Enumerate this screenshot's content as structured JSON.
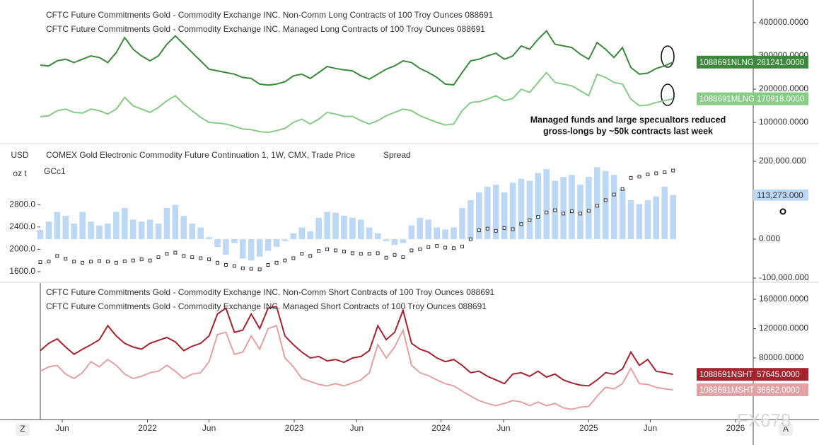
{
  "annotation": [
    "Managed funds and large specualtors reduced",
    "gross-longs by ~50k contracts last week"
  ],
  "buttons": [
    "Z",
    "A"
  ],
  "watermark": "FX678",
  "time_axis": {
    "xlim": [
      0,
      84.5
    ],
    "xticks": [
      {
        "value": 2.6,
        "label": "Jun"
      },
      {
        "value": 12.7,
        "label": "2022"
      },
      {
        "value": 20.0,
        "label": "Jun"
      },
      {
        "value": 30.1,
        "label": "2023"
      },
      {
        "value": 37.5,
        "label": "Jun"
      },
      {
        "value": 47.5,
        "label": "2024"
      },
      {
        "value": 54.9,
        "label": "Jun"
      },
      {
        "value": 65.0,
        "label": "2025"
      },
      {
        "value": 72.3,
        "label": "Jun"
      },
      {
        "value": 82.4,
        "label": "2026"
      }
    ]
  },
  "chart_data": [
    {
      "type": "line",
      "y_axis_side": "right",
      "ylim": [
        42500,
        451000
      ],
      "yticks": [
        {
          "value": 400000,
          "label": "400000.0000"
        },
        {
          "value": 300000,
          "label": "300000.0000"
        },
        {
          "value": 200000,
          "label": "200000.0000"
        },
        {
          "value": 100000,
          "label": "100000.0000"
        }
      ],
      "series": [
        {
          "name": "1088691NLNG",
          "legend": "CFTC Future Commitments Gold - Commodity Exchange INC. Non-Comm Long Contracts of 100 Troy Ounces 088691",
          "color": "#3b8a3b",
          "type": "line",
          "last_value_label": "281241.0000",
          "values": [
            272000,
            270000,
            285000,
            290000,
            280000,
            290000,
            300000,
            295000,
            280000,
            310000,
            355000,
            320000,
            300000,
            285000,
            300000,
            335000,
            360000,
            335000,
            310000,
            285000,
            260000,
            255000,
            250000,
            245000,
            235000,
            232000,
            215000,
            212000,
            215000,
            222000,
            240000,
            245000,
            232000,
            250000,
            268000,
            262000,
            258000,
            255000,
            240000,
            230000,
            245000,
            260000,
            270000,
            285000,
            280000,
            262000,
            250000,
            235000,
            215000,
            213000,
            250000,
            285000,
            290000,
            300000,
            308000,
            290000,
            300000,
            330000,
            320000,
            350000,
            375000,
            335000,
            330000,
            325000,
            305000,
            290000,
            340000,
            320000,
            295000,
            325000,
            265000,
            245000,
            248000,
            262000,
            270000,
            281241
          ]
        },
        {
          "name": "1088691MLNG",
          "legend": "CFTC Future Commitments Gold - Commodity Exchange INC. Managed Long Contracts of 100 Troy Ounces 088691",
          "color": "#86cb86",
          "type": "line",
          "last_value_label": "170918.0000",
          "values": [
            117000,
            120000,
            135000,
            140000,
            130000,
            128000,
            140000,
            135000,
            125000,
            140000,
            175000,
            150000,
            140000,
            130000,
            145000,
            165000,
            180000,
            155000,
            135000,
            115000,
            100000,
            98000,
            95000,
            88000,
            80000,
            78000,
            72000,
            70000,
            75000,
            82000,
            100000,
            110000,
            95000,
            110000,
            130000,
            125000,
            118000,
            118000,
            105000,
            95000,
            105000,
            120000,
            130000,
            140000,
            135000,
            120000,
            110000,
            100000,
            92000,
            95000,
            135000,
            160000,
            162000,
            170000,
            180000,
            165000,
            172000,
            200000,
            190000,
            220000,
            250000,
            220000,
            215000,
            210000,
            195000,
            180000,
            245000,
            235000,
            220000,
            215000,
            170000,
            150000,
            152000,
            160000,
            165000,
            170918
          ]
        }
      ]
    },
    {
      "type": "combo",
      "y_axis_side": "left",
      "title": "COMEX Gold Electronic Commodity Future Continuation 1, 1W, CMX, Trade Price",
      "ylabel": [
        "USD",
        "oz t"
      ],
      "ylim": [
        1422,
        3867
      ],
      "yticks": [
        {
          "value": 2800,
          "label": "2800.0"
        },
        {
          "value": 2400,
          "label": "2400.0"
        },
        {
          "value": 2000,
          "label": "2000.0"
        },
        {
          "value": 1600,
          "label": "1600.0"
        }
      ],
      "y2lim": [
        -109000,
        241800
      ],
      "y2ticks": [
        {
          "value": 200000,
          "label": "200,000.000"
        },
        {
          "value": 0,
          "label": "0.000"
        },
        {
          "value": -100000,
          "label": "-100,000.000"
        }
      ],
      "series": [
        {
          "name": "Spread",
          "color": "#bcd8f5",
          "type": "bar",
          "axis": "y2",
          "last_value_label": "113,273.000",
          "values": [
            24000,
            45000,
            70000,
            60000,
            40000,
            70000,
            45000,
            35000,
            40000,
            70000,
            80000,
            50000,
            45000,
            50000,
            40000,
            80000,
            88000,
            60000,
            40000,
            30000,
            5000,
            -20000,
            -40000,
            -10000,
            -50000,
            -55000,
            -45000,
            -30000,
            -20000,
            -5000,
            15000,
            30000,
            20000,
            55000,
            70000,
            68000,
            60000,
            55000,
            50000,
            30000,
            15000,
            -5000,
            -15000,
            -10000,
            35000,
            55000,
            50000,
            30000,
            25000,
            30000,
            80000,
            100000,
            120000,
            135000,
            140000,
            120000,
            145000,
            155000,
            150000,
            170000,
            180000,
            150000,
            160000,
            165000,
            140000,
            160000,
            185000,
            175000,
            165000,
            130000,
            100000,
            90000,
            100000,
            110000,
            135000,
            113273
          ]
        },
        {
          "name": "GCc1",
          "color": "#333333",
          "type": "candle",
          "values": [
            1770,
            1780,
            1880,
            1830,
            1780,
            1760,
            1780,
            1790,
            1780,
            1760,
            1785,
            1800,
            1820,
            1800,
            1860,
            1920,
            1940,
            1880,
            1860,
            1840,
            1820,
            1760,
            1720,
            1700,
            1660,
            1650,
            1640,
            1720,
            1760,
            1800,
            1840,
            1920,
            1880,
            1970,
            2000,
            1980,
            1960,
            1930,
            1920,
            1920,
            1930,
            1850,
            1900,
            1860,
            1980,
            2000,
            2040,
            2060,
            2030,
            2020,
            2050,
            2180,
            2340,
            2370,
            2330,
            2380,
            2360,
            2450,
            2520,
            2580,
            2660,
            2700,
            2640,
            2680,
            2640,
            2690,
            2780,
            2880,
            2980,
            3080,
            3280,
            3300,
            3340,
            3360,
            3380,
            3410
          ]
        }
      ]
    },
    {
      "type": "line",
      "y_axis_side": "right",
      "ylim": [
        -2900,
        182200
      ],
      "yticks": [
        {
          "value": 160000,
          "label": "160000.0000"
        },
        {
          "value": 120000,
          "label": "120000.0000"
        },
        {
          "value": 80000,
          "label": "80000.0000"
        }
      ],
      "series": [
        {
          "name": "1088691NSHT",
          "legend": "CFTC Future Commitments Gold - Commodity Exchange INC. Non-Comm Short Contracts of 100 Troy Ounces 088691",
          "color": "#a5232e",
          "type": "line",
          "last_value_label": "57645.0000",
          "values": [
            90000,
            100000,
            106000,
            95000,
            85000,
            92000,
            98000,
            105000,
            124000,
            110000,
            100000,
            95000,
            92000,
            100000,
            104000,
            108000,
            102000,
            90000,
            96000,
            100000,
            110000,
            140000,
            148000,
            115000,
            118000,
            140000,
            120000,
            148000,
            150000,
            110000,
            98000,
            88000,
            80000,
            82000,
            76000,
            78000,
            74000,
            80000,
            82000,
            90000,
            124000,
            105000,
            115000,
            145000,
            100000,
            92000,
            88000,
            80000,
            75000,
            78000,
            70000,
            60000,
            62000,
            55000,
            50000,
            45000,
            58000,
            60000,
            55000,
            62000,
            54000,
            58000,
            50000,
            46000,
            43000,
            42000,
            50000,
            60000,
            58000,
            65000,
            88000,
            70000,
            78000,
            62000,
            60000,
            57645
          ]
        },
        {
          "name": "1088691MSHT",
          "legend": "CFTC Future Commitments Gold - Commodity Exchange INC. Managed Short Contracts of 100 Troy Ounces 088691",
          "color": "#e3a1a4",
          "type": "line",
          "last_value_label": "36662.0000",
          "values": [
            62000,
            68000,
            70000,
            58000,
            52000,
            60000,
            75000,
            68000,
            78000,
            70000,
            58000,
            52000,
            55000,
            60000,
            62000,
            70000,
            62000,
            52000,
            58000,
            60000,
            75000,
            112000,
            115000,
            85000,
            88000,
            110000,
            92000,
            120000,
            124000,
            80000,
            68000,
            52000,
            48000,
            44000,
            42000,
            45000,
            42000,
            46000,
            50000,
            60000,
            98000,
            80000,
            95000,
            118000,
            70000,
            60000,
            56000,
            50000,
            45000,
            42000,
            35000,
            28000,
            22000,
            18000,
            15000,
            18000,
            22000,
            20000,
            15000,
            20000,
            15000,
            18000,
            12000,
            10000,
            13000,
            14000,
            28000,
            40000,
            38000,
            45000,
            66000,
            45000,
            44000,
            40000,
            38000,
            36662
          ]
        }
      ]
    }
  ]
}
